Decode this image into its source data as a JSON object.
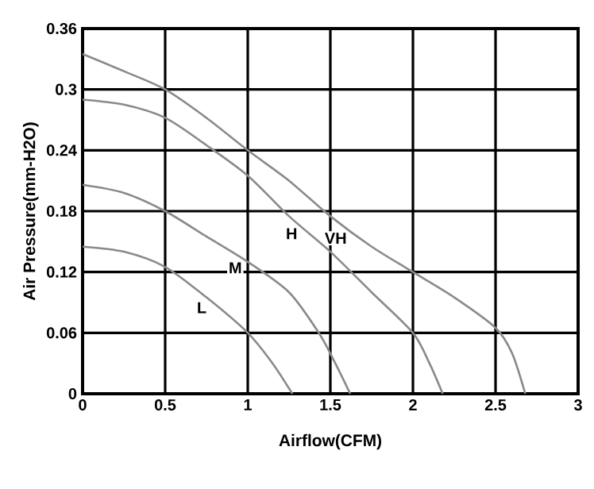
{
  "chart_data": {
    "type": "line",
    "xlabel": "Airflow(CFM)",
    "ylabel": "Air Pressure(mm-H2O)",
    "xlim": [
      0,
      3
    ],
    "ylim": [
      0,
      0.36
    ],
    "xticks": [
      0,
      0.5,
      1,
      1.5,
      2,
      2.5,
      3
    ],
    "yticks": [
      0,
      0.06,
      0.12,
      0.18,
      0.24,
      0.3,
      0.36
    ],
    "grid": true,
    "marker": "none",
    "line_style": "solid",
    "series": [
      {
        "name": "VH",
        "color": "#8a8a8a",
        "x": [
          0,
          0.25,
          0.5,
          0.75,
          1.0,
          1.25,
          1.5,
          1.75,
          2.0,
          2.25,
          2.5,
          2.6,
          2.68
        ],
        "values": [
          0.335,
          0.318,
          0.3,
          0.272,
          0.24,
          0.21,
          0.175,
          0.145,
          0.12,
          0.095,
          0.065,
          0.04,
          0
        ]
      },
      {
        "name": "H",
        "color": "#8a8a8a",
        "x": [
          0,
          0.25,
          0.5,
          0.75,
          1.0,
          1.25,
          1.5,
          1.75,
          2.0,
          2.1,
          2.18
        ],
        "values": [
          0.29,
          0.285,
          0.272,
          0.245,
          0.215,
          0.175,
          0.14,
          0.1,
          0.06,
          0.03,
          0
        ]
      },
      {
        "name": "M",
        "color": "#8a8a8a",
        "x": [
          0,
          0.25,
          0.5,
          0.75,
          1.0,
          1.25,
          1.43,
          1.53,
          1.62
        ],
        "values": [
          0.206,
          0.198,
          0.18,
          0.155,
          0.13,
          0.1,
          0.06,
          0.03,
          0
        ]
      },
      {
        "name": "L",
        "color": "#8a8a8a",
        "x": [
          0,
          0.25,
          0.5,
          0.75,
          1.0,
          1.15,
          1.27
        ],
        "values": [
          0.145,
          0.14,
          0.125,
          0.095,
          0.06,
          0.03,
          0
        ]
      }
    ]
  }
}
